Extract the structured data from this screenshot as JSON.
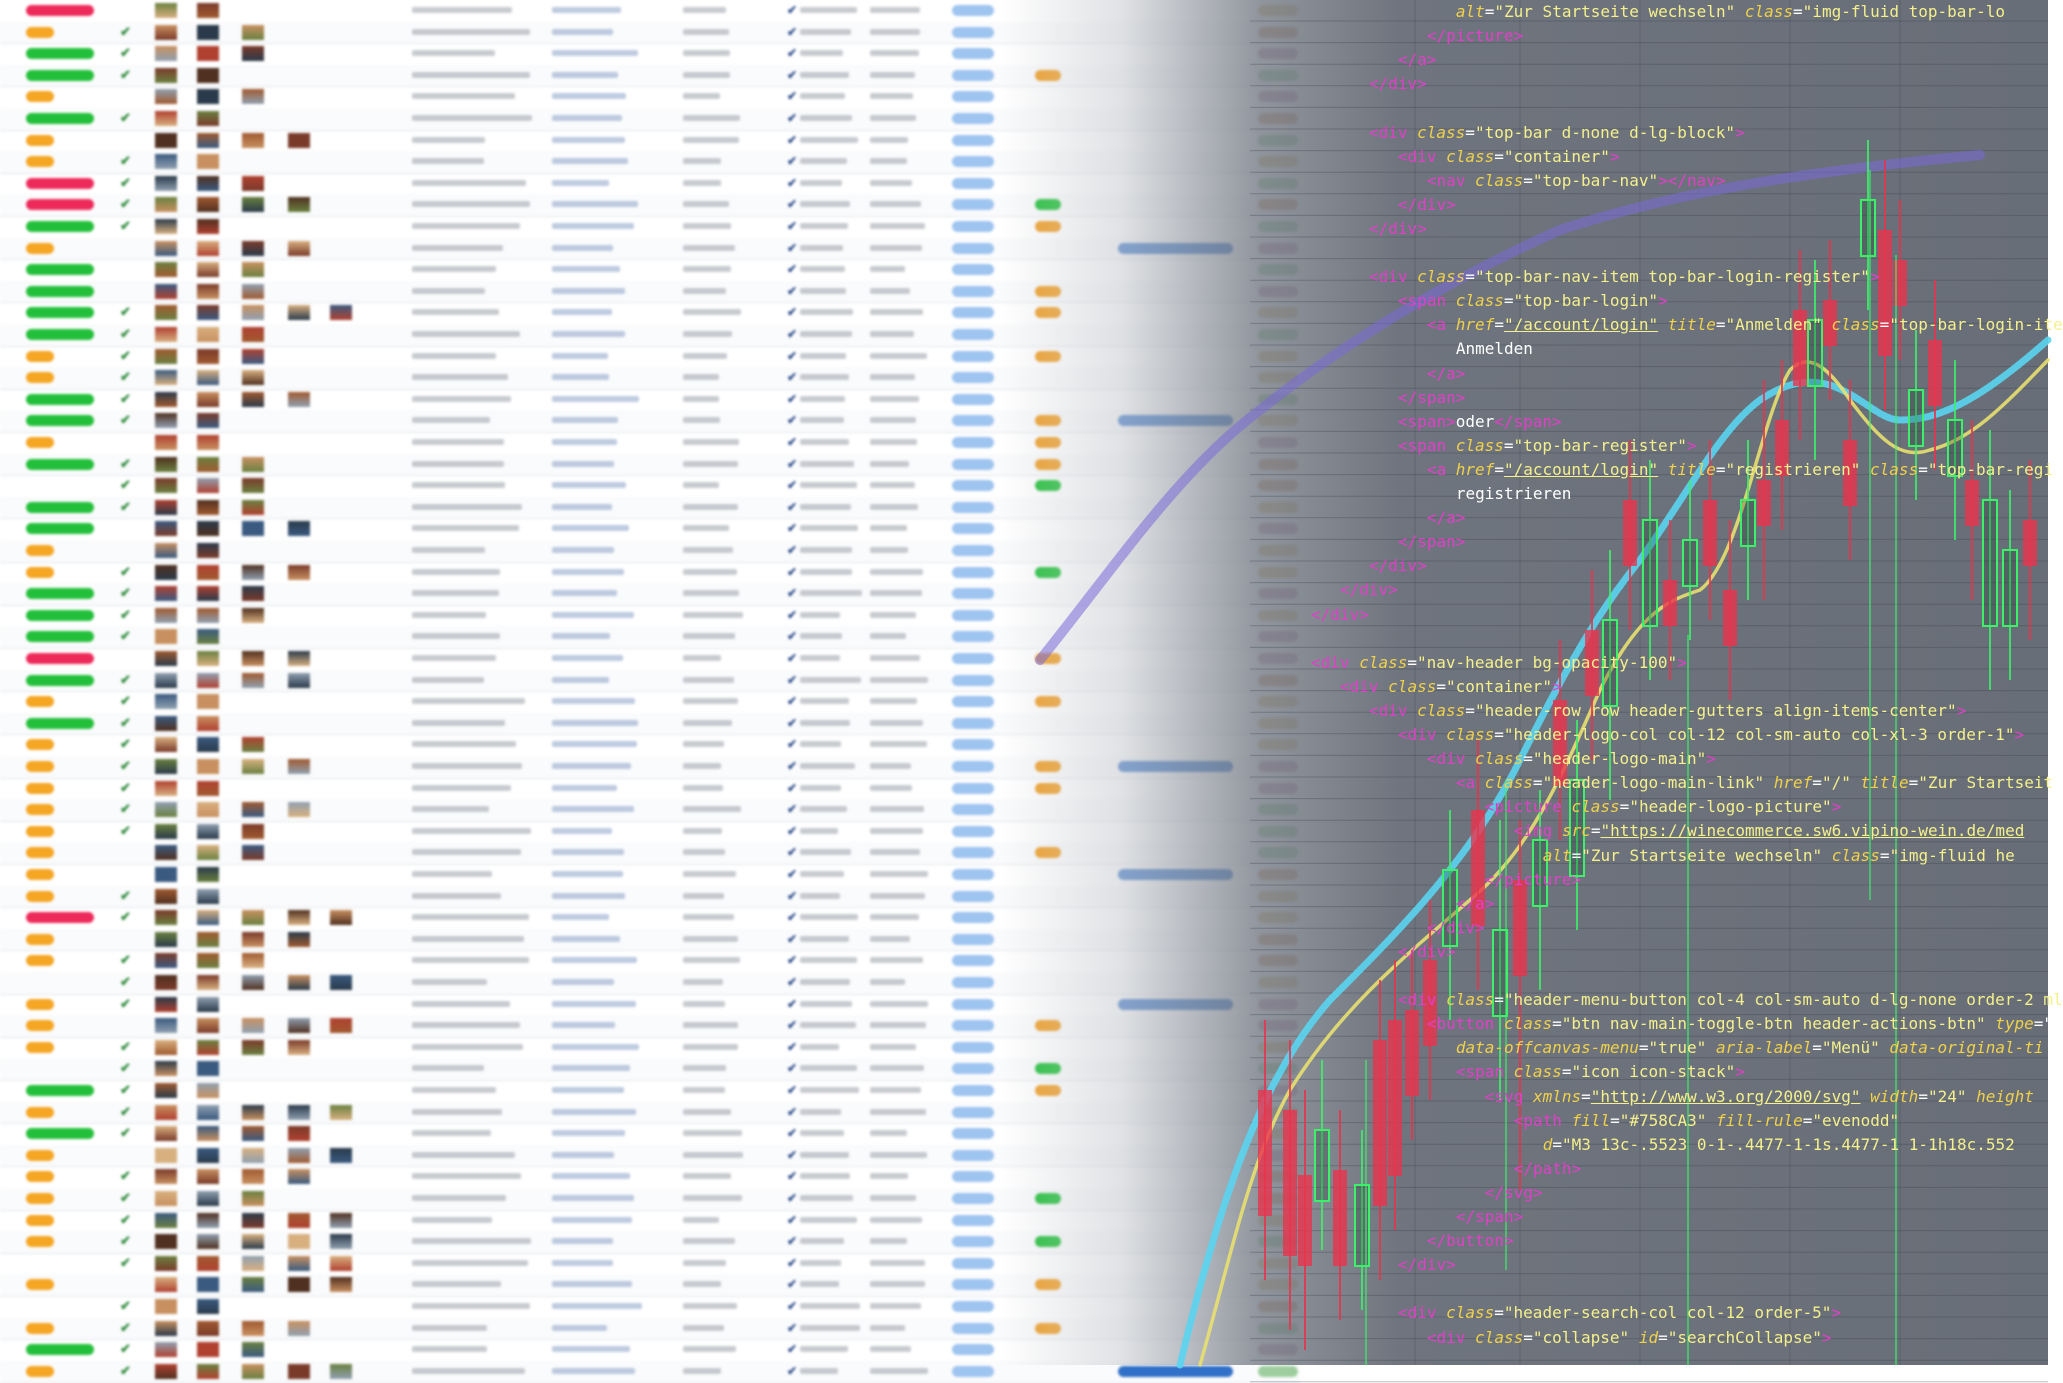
{
  "code_lines": [
    {
      "indent": 8,
      "parts": [
        {
          "t": "at",
          "v": "alt"
        },
        {
          "t": "pl",
          "v": "="
        },
        {
          "t": "st",
          "v": "\"Zur Startseite wechseln\""
        },
        {
          "t": "pl",
          "v": " "
        },
        {
          "t": "at",
          "v": "class"
        },
        {
          "t": "pl",
          "v": "="
        },
        {
          "t": "st",
          "v": "\"img-fluid top-bar-lo"
        }
      ]
    },
    {
      "indent": 6,
      "parts": [
        {
          "t": "tg",
          "v": "</picture>"
        }
      ]
    },
    {
      "indent": 4,
      "parts": [
        {
          "t": "tg",
          "v": "</a>"
        }
      ]
    },
    {
      "indent": 2,
      "parts": [
        {
          "t": "tg",
          "v": "</div>"
        }
      ]
    },
    {
      "indent": 0,
      "parts": []
    },
    {
      "indent": 2,
      "parts": [
        {
          "t": "tg",
          "v": "<div "
        },
        {
          "t": "at",
          "v": "class"
        },
        {
          "t": "pl",
          "v": "="
        },
        {
          "t": "st",
          "v": "\"top-bar d-none d-lg-block\""
        },
        {
          "t": "tg",
          "v": ">"
        }
      ]
    },
    {
      "indent": 4,
      "parts": [
        {
          "t": "tg",
          "v": "<div "
        },
        {
          "t": "at",
          "v": "class"
        },
        {
          "t": "pl",
          "v": "="
        },
        {
          "t": "st",
          "v": "\"container\""
        },
        {
          "t": "tg",
          "v": ">"
        }
      ]
    },
    {
      "indent": 6,
      "parts": [
        {
          "t": "tg",
          "v": "<nav "
        },
        {
          "t": "at",
          "v": "class"
        },
        {
          "t": "pl",
          "v": "="
        },
        {
          "t": "st",
          "v": "\"top-bar-nav\""
        },
        {
          "t": "tg",
          "v": "></nav>"
        }
      ]
    },
    {
      "indent": 4,
      "parts": [
        {
          "t": "tg",
          "v": "</div>"
        }
      ]
    },
    {
      "indent": 2,
      "parts": [
        {
          "t": "tg",
          "v": "</div>"
        }
      ]
    },
    {
      "indent": 0,
      "parts": []
    },
    {
      "indent": 2,
      "parts": [
        {
          "t": "tg",
          "v": "<div "
        },
        {
          "t": "at",
          "v": "class"
        },
        {
          "t": "pl",
          "v": "="
        },
        {
          "t": "st",
          "v": "\"top-bar-nav-item top-bar-login-register\""
        },
        {
          "t": "tg",
          "v": ">"
        }
      ]
    },
    {
      "indent": 4,
      "parts": [
        {
          "t": "tg",
          "v": "<span "
        },
        {
          "t": "at",
          "v": "class"
        },
        {
          "t": "pl",
          "v": "="
        },
        {
          "t": "st",
          "v": "\"top-bar-login\""
        },
        {
          "t": "tg",
          "v": ">"
        }
      ]
    },
    {
      "indent": 6,
      "parts": [
        {
          "t": "tg",
          "v": "<a "
        },
        {
          "t": "at",
          "v": "href"
        },
        {
          "t": "pl",
          "v": "="
        },
        {
          "t": "lk",
          "v": "\"/account/login\""
        },
        {
          "t": "pl",
          "v": " "
        },
        {
          "t": "at",
          "v": "title"
        },
        {
          "t": "pl",
          "v": "="
        },
        {
          "t": "st",
          "v": "\"Anmelden\""
        },
        {
          "t": "pl",
          "v": " "
        },
        {
          "t": "at",
          "v": "class"
        },
        {
          "t": "pl",
          "v": "="
        },
        {
          "t": "st",
          "v": "\"top-bar-login-ite"
        }
      ]
    },
    {
      "indent": 8,
      "parts": [
        {
          "t": "pl",
          "v": "Anmelden"
        }
      ]
    },
    {
      "indent": 6,
      "parts": [
        {
          "t": "tg",
          "v": "</a>"
        }
      ]
    },
    {
      "indent": 4,
      "parts": [
        {
          "t": "tg",
          "v": "</span>"
        }
      ]
    },
    {
      "indent": 4,
      "parts": [
        {
          "t": "tg",
          "v": "<span>"
        },
        {
          "t": "pl",
          "v": "oder"
        },
        {
          "t": "tg",
          "v": "</span>"
        }
      ]
    },
    {
      "indent": 4,
      "parts": [
        {
          "t": "tg",
          "v": "<span "
        },
        {
          "t": "at",
          "v": "class"
        },
        {
          "t": "pl",
          "v": "="
        },
        {
          "t": "st",
          "v": "\"top-bar-register\""
        },
        {
          "t": "tg",
          "v": ">"
        }
      ]
    },
    {
      "indent": 6,
      "parts": [
        {
          "t": "tg",
          "v": "<a "
        },
        {
          "t": "at",
          "v": "href"
        },
        {
          "t": "pl",
          "v": "="
        },
        {
          "t": "lk",
          "v": "\"/account/login\""
        },
        {
          "t": "pl",
          "v": " "
        },
        {
          "t": "at",
          "v": "title"
        },
        {
          "t": "pl",
          "v": "="
        },
        {
          "t": "st",
          "v": "\"registrieren\""
        },
        {
          "t": "pl",
          "v": " "
        },
        {
          "t": "at",
          "v": "class"
        },
        {
          "t": "pl",
          "v": "="
        },
        {
          "t": "st",
          "v": "\"top-bar-regi"
        }
      ]
    },
    {
      "indent": 8,
      "parts": [
        {
          "t": "pl",
          "v": "registrieren"
        }
      ]
    },
    {
      "indent": 6,
      "parts": [
        {
          "t": "tg",
          "v": "</a>"
        }
      ]
    },
    {
      "indent": 4,
      "parts": [
        {
          "t": "tg",
          "v": "</span>"
        }
      ]
    },
    {
      "indent": 2,
      "parts": [
        {
          "t": "tg",
          "v": "</div>"
        }
      ]
    },
    {
      "indent": 0,
      "parts": [
        {
          "t": "tg",
          "v": "</div>"
        }
      ]
    },
    {
      "indent": -2,
      "parts": [
        {
          "t": "tg",
          "v": "</div>"
        }
      ]
    },
    {
      "indent": 0,
      "parts": []
    },
    {
      "indent": -2,
      "parts": [
        {
          "t": "tg",
          "v": "<div "
        },
        {
          "t": "at",
          "v": "class"
        },
        {
          "t": "pl",
          "v": "="
        },
        {
          "t": "st",
          "v": "\"nav-header bg-opacity-100\""
        },
        {
          "t": "tg",
          "v": ">"
        }
      ]
    },
    {
      "indent": 0,
      "parts": [
        {
          "t": "tg",
          "v": "<div "
        },
        {
          "t": "at",
          "v": "class"
        },
        {
          "t": "pl",
          "v": "="
        },
        {
          "t": "st",
          "v": "\"container\""
        },
        {
          "t": "tg",
          "v": ">"
        }
      ]
    },
    {
      "indent": 2,
      "parts": [
        {
          "t": "tg",
          "v": "<div "
        },
        {
          "t": "at",
          "v": "class"
        },
        {
          "t": "pl",
          "v": "="
        },
        {
          "t": "st",
          "v": "\"header-row row header-gutters align-items-center\""
        },
        {
          "t": "tg",
          "v": ">"
        }
      ]
    },
    {
      "indent": 4,
      "parts": [
        {
          "t": "tg",
          "v": "<div "
        },
        {
          "t": "at",
          "v": "class"
        },
        {
          "t": "pl",
          "v": "="
        },
        {
          "t": "st",
          "v": "\"header-logo-col col-12 col-sm-auto col-xl-3 order-1\""
        },
        {
          "t": "tg",
          "v": ">"
        }
      ]
    },
    {
      "indent": 6,
      "parts": [
        {
          "t": "tg",
          "v": "<div "
        },
        {
          "t": "at",
          "v": "class"
        },
        {
          "t": "pl",
          "v": "="
        },
        {
          "t": "st",
          "v": "\"header-logo-main\""
        },
        {
          "t": "tg",
          "v": ">"
        }
      ]
    },
    {
      "indent": 8,
      "parts": [
        {
          "t": "tg",
          "v": "<a "
        },
        {
          "t": "at",
          "v": "class"
        },
        {
          "t": "pl",
          "v": "="
        },
        {
          "t": "st",
          "v": "\"header-logo-main-link\""
        },
        {
          "t": "pl",
          "v": " "
        },
        {
          "t": "at",
          "v": "href"
        },
        {
          "t": "pl",
          "v": "="
        },
        {
          "t": "st",
          "v": "\"/\""
        },
        {
          "t": "pl",
          "v": " "
        },
        {
          "t": "at",
          "v": "title"
        },
        {
          "t": "pl",
          "v": "="
        },
        {
          "t": "st",
          "v": "\"Zur Startseit"
        }
      ]
    },
    {
      "indent": 10,
      "parts": [
        {
          "t": "tg",
          "v": "<picture "
        },
        {
          "t": "at",
          "v": "class"
        },
        {
          "t": "pl",
          "v": "="
        },
        {
          "t": "st",
          "v": "\"header-logo-picture\""
        },
        {
          "t": "tg",
          "v": ">"
        }
      ]
    },
    {
      "indent": 12,
      "parts": [
        {
          "t": "tg",
          "v": "<img "
        },
        {
          "t": "at",
          "v": "src"
        },
        {
          "t": "pl",
          "v": "="
        },
        {
          "t": "lk",
          "v": "\"https://winecommerce.sw6.vipino-wein.de/med"
        }
      ]
    },
    {
      "indent": 14,
      "parts": [
        {
          "t": "at",
          "v": "alt"
        },
        {
          "t": "pl",
          "v": "="
        },
        {
          "t": "st",
          "v": "\"Zur Startseite wechseln\""
        },
        {
          "t": "pl",
          "v": " "
        },
        {
          "t": "at",
          "v": "class"
        },
        {
          "t": "pl",
          "v": "="
        },
        {
          "t": "st",
          "v": "\"img-fluid he"
        }
      ]
    },
    {
      "indent": 10,
      "parts": [
        {
          "t": "tg",
          "v": "</picture>"
        }
      ]
    },
    {
      "indent": 8,
      "parts": [
        {
          "t": "tg",
          "v": "</a>"
        }
      ]
    },
    {
      "indent": 6,
      "parts": [
        {
          "t": "tg",
          "v": "</div>"
        }
      ]
    },
    {
      "indent": 4,
      "parts": [
        {
          "t": "tg",
          "v": "</div>"
        }
      ]
    },
    {
      "indent": 0,
      "parts": []
    },
    {
      "indent": 4,
      "parts": [
        {
          "t": "tg",
          "v": "<div "
        },
        {
          "t": "at",
          "v": "class"
        },
        {
          "t": "pl",
          "v": "="
        },
        {
          "t": "st",
          "v": "\"header-menu-button col-4 col-sm-auto d-lg-none order-2 ml"
        }
      ]
    },
    {
      "indent": 6,
      "parts": [
        {
          "t": "tg",
          "v": "<button "
        },
        {
          "t": "at",
          "v": "class"
        },
        {
          "t": "pl",
          "v": "="
        },
        {
          "t": "st",
          "v": "\"btn nav-main-toggle-btn header-actions-btn\""
        },
        {
          "t": "pl",
          "v": " "
        },
        {
          "t": "at",
          "v": "type"
        },
        {
          "t": "pl",
          "v": "=\""
        }
      ]
    },
    {
      "indent": 8,
      "parts": [
        {
          "t": "at",
          "v": "data-offcanvas-menu"
        },
        {
          "t": "pl",
          "v": "="
        },
        {
          "t": "st",
          "v": "\"true\""
        },
        {
          "t": "pl",
          "v": " "
        },
        {
          "t": "at",
          "v": "aria-label"
        },
        {
          "t": "pl",
          "v": "="
        },
        {
          "t": "st",
          "v": "\"Menü\""
        },
        {
          "t": "pl",
          "v": " "
        },
        {
          "t": "at",
          "v": "data-original-ti"
        }
      ]
    },
    {
      "indent": 8,
      "parts": [
        {
          "t": "tg",
          "v": "<span "
        },
        {
          "t": "at",
          "v": "class"
        },
        {
          "t": "pl",
          "v": "="
        },
        {
          "t": "st",
          "v": "\"icon icon-stack\""
        },
        {
          "t": "tg",
          "v": ">"
        }
      ]
    },
    {
      "indent": 10,
      "parts": [
        {
          "t": "tg",
          "v": "<svg "
        },
        {
          "t": "at",
          "v": "xmlns"
        },
        {
          "t": "pl",
          "v": "="
        },
        {
          "t": "lk",
          "v": "\"http://www.w3.org/2000/svg\""
        },
        {
          "t": "pl",
          "v": " "
        },
        {
          "t": "at",
          "v": "width"
        },
        {
          "t": "pl",
          "v": "="
        },
        {
          "t": "st",
          "v": "\"24\""
        },
        {
          "t": "pl",
          "v": " "
        },
        {
          "t": "at",
          "v": "height"
        }
      ]
    },
    {
      "indent": 12,
      "parts": [
        {
          "t": "tg",
          "v": "<path "
        },
        {
          "t": "at",
          "v": "fill"
        },
        {
          "t": "pl",
          "v": "="
        },
        {
          "t": "st",
          "v": "\"#758CA3\""
        },
        {
          "t": "pl",
          "v": " "
        },
        {
          "t": "at",
          "v": "fill-rule"
        },
        {
          "t": "pl",
          "v": "="
        },
        {
          "t": "st",
          "v": "\"evenodd\""
        }
      ]
    },
    {
      "indent": 14,
      "parts": [
        {
          "t": "at",
          "v": "d"
        },
        {
          "t": "pl",
          "v": "="
        },
        {
          "t": "st",
          "v": "\"M3 13c-.5523 0-1-.4477-1-1s.4477-1 1-1h18c.552"
        }
      ]
    },
    {
      "indent": 12,
      "parts": [
        {
          "t": "tg",
          "v": "</path>"
        }
      ]
    },
    {
      "indent": 10,
      "parts": [
        {
          "t": "tg",
          "v": "</svg>"
        }
      ]
    },
    {
      "indent": 8,
      "parts": [
        {
          "t": "tg",
          "v": "</span>"
        }
      ]
    },
    {
      "indent": 6,
      "parts": [
        {
          "t": "tg",
          "v": "</button>"
        }
      ]
    },
    {
      "indent": 4,
      "parts": [
        {
          "t": "tg",
          "v": "</div>"
        }
      ]
    },
    {
      "indent": 0,
      "parts": []
    },
    {
      "indent": 4,
      "parts": [
        {
          "t": "tg",
          "v": "<div "
        },
        {
          "t": "at",
          "v": "class"
        },
        {
          "t": "pl",
          "v": "="
        },
        {
          "t": "st",
          "v": "\"header-search-col col-12 order-5\""
        },
        {
          "t": "tg",
          "v": ">"
        }
      ]
    },
    {
      "indent": 6,
      "parts": [
        {
          "t": "tg",
          "v": "<div "
        },
        {
          "t": "at",
          "v": "class"
        },
        {
          "t": "pl",
          "v": "="
        },
        {
          "t": "st",
          "v": "\"collapse\""
        },
        {
          "t": "pl",
          "v": " "
        },
        {
          "t": "at",
          "v": "id"
        },
        {
          "t": "pl",
          "v": "="
        },
        {
          "t": "st",
          "v": "\"searchCollapse\""
        },
        {
          "t": "tg",
          "v": ">"
        }
      ]
    }
  ],
  "colors": {
    "tag": "#e040c8",
    "attr": "#f0d14a",
    "string": "#f4f08c",
    "candle_up": "#3df06a",
    "candle_down": "#e8344e",
    "line_blue": "#5ad4f0",
    "line_yellow": "#e8e070",
    "line_purple": "#7a6ad8",
    "pill_green": "#22c03a",
    "pill_orange": "#f5a623",
    "pill_red": "#ee2a5a",
    "tag_blue": "#9ec4f0",
    "tag_orange": "#f0a02a"
  }
}
